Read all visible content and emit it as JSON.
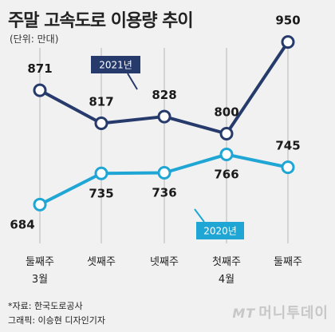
{
  "title": "주말 고속도로 이용량 추이",
  "unit": "(단위: 만대)",
  "source": "*자료: 한국도로공사",
  "credit": "그래픽: 이승현 디자인기자",
  "watermark_mt": "MT",
  "watermark": "머니투데이",
  "colors": {
    "series_2021": "#263a6b",
    "series_2020": "#1fa6d4",
    "marker_fill": "#ffffff",
    "gridline": "#b8b8b8"
  },
  "chart_data": {
    "type": "line",
    "categories": [
      "둘째주",
      "셋째주",
      "넷째주",
      "첫째주",
      "둘째주"
    ],
    "category_sublabels": [
      "3월",
      "",
      "",
      "4월",
      ""
    ],
    "series": [
      {
        "name": "2021년",
        "values": [
          871,
          817,
          828,
          800,
          950
        ]
      },
      {
        "name": "2020년",
        "values": [
          684,
          735,
          736,
          766,
          745
        ]
      }
    ],
    "ylim": [
      640,
      960
    ],
    "grid": true,
    "xlabel": "",
    "ylabel": ""
  }
}
